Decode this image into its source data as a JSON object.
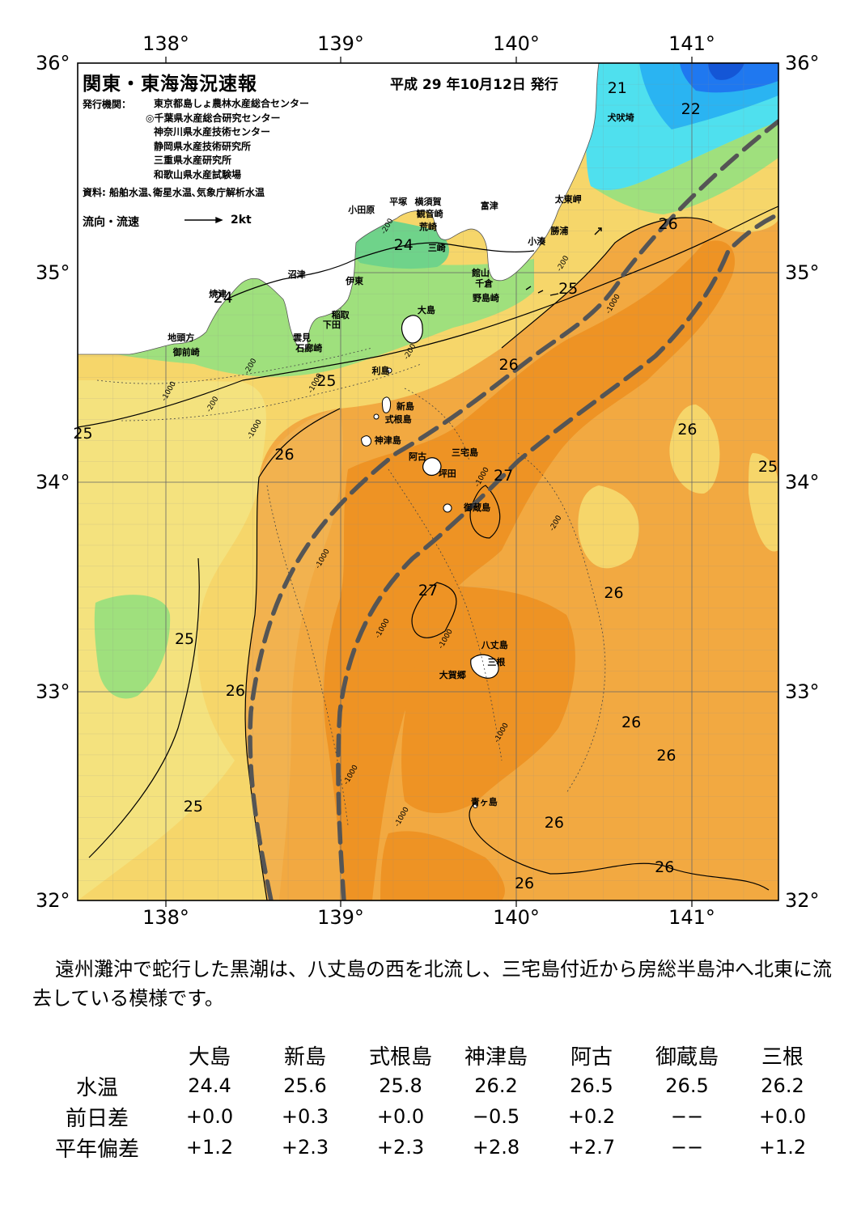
{
  "map": {
    "title": "関東・東海海況速報",
    "publish_date": "平成 29 年10月12日 発行",
    "agency_label": "発行機関：",
    "agencies": [
      "東京都島しょ農林水産総合センター",
      "◎千葉県水産総合研究センター",
      "神奈川県水産技術センター",
      "静岡県水産技術研究所",
      "三重県水産研究所",
      "和歌山県水産試験場"
    ],
    "source": "資料: 船舶水温､衛星水温､気象庁解析水温",
    "flow_label": "流向・流速",
    "flow_unit": "2kt",
    "lon_labels": [
      "138°",
      "139°",
      "140°",
      "141°"
    ],
    "lat_labels": [
      "36°",
      "35°",
      "34°",
      "33°",
      "32°"
    ],
    "place_names": [
      {
        "name": "小田原",
        "lon": 139.12,
        "lat": 35.3
      },
      {
        "name": "平塚",
        "lon": 139.33,
        "lat": 35.34
      },
      {
        "name": "横須賀",
        "lon": 139.5,
        "lat": 35.34
      },
      {
        "name": "観音崎",
        "lon": 139.51,
        "lat": 35.28
      },
      {
        "name": "荒崎",
        "lon": 139.5,
        "lat": 35.22
      },
      {
        "name": "三崎",
        "lon": 139.55,
        "lat": 35.12
      },
      {
        "name": "富津",
        "lon": 139.85,
        "lat": 35.32
      },
      {
        "name": "館山",
        "lon": 139.8,
        "lat": 35.0
      },
      {
        "name": "千倉",
        "lon": 139.82,
        "lat": 34.95
      },
      {
        "name": "野島崎",
        "lon": 139.83,
        "lat": 34.88
      },
      {
        "name": "小湊",
        "lon": 140.12,
        "lat": 35.15
      },
      {
        "name": "勝浦",
        "lon": 140.25,
        "lat": 35.2
      },
      {
        "name": "太東岬",
        "lon": 140.3,
        "lat": 35.35
      },
      {
        "name": "犬吠埼",
        "lon": 140.6,
        "lat": 35.74
      },
      {
        "name": "沼津",
        "lon": 138.75,
        "lat": 34.99
      },
      {
        "name": "伊東",
        "lon": 139.08,
        "lat": 34.96
      },
      {
        "name": "焼津",
        "lon": 138.3,
        "lat": 34.9
      },
      {
        "name": "稲取",
        "lon": 139.0,
        "lat": 34.8
      },
      {
        "name": "下田",
        "lon": 138.95,
        "lat": 34.75
      },
      {
        "name": "雲見",
        "lon": 138.78,
        "lat": 34.69
      },
      {
        "name": "石廊崎",
        "lon": 138.82,
        "lat": 34.64
      },
      {
        "name": "地頭方",
        "lon": 138.09,
        "lat": 34.69
      },
      {
        "name": "御前崎",
        "lon": 138.12,
        "lat": 34.62
      },
      {
        "name": "大島",
        "lon": 139.49,
        "lat": 34.82
      },
      {
        "name": "利島",
        "lon": 139.23,
        "lat": 34.53
      },
      {
        "name": "新島",
        "lon": 139.37,
        "lat": 34.36
      },
      {
        "name": "式根島",
        "lon": 139.33,
        "lat": 34.3
      },
      {
        "name": "神津島",
        "lon": 139.27,
        "lat": 34.2
      },
      {
        "name": "三宅島",
        "lon": 139.71,
        "lat": 34.14
      },
      {
        "name": "阿古",
        "lon": 139.44,
        "lat": 34.12
      },
      {
        "name": "坪田",
        "lon": 139.61,
        "lat": 34.04
      },
      {
        "name": "御蔵島",
        "lon": 139.78,
        "lat": 33.88
      },
      {
        "name": "八丈島",
        "lon": 139.88,
        "lat": 33.22
      },
      {
        "name": "三根",
        "lon": 139.89,
        "lat": 33.14
      },
      {
        "name": "大賀郷",
        "lon": 139.64,
        "lat": 33.08
      },
      {
        "name": "青ヶ島",
        "lon": 139.82,
        "lat": 32.47
      }
    ],
    "isotherm_labels": [
      {
        "text": "21",
        "lon": 140.58,
        "lat": 35.88
      },
      {
        "text": "22",
        "lon": 141.0,
        "lat": 35.78
      },
      {
        "text": "24",
        "lon": 139.36,
        "lat": 35.13
      },
      {
        "text": "24",
        "lon": 138.33,
        "lat": 34.88
      },
      {
        "text": "25",
        "lon": 140.3,
        "lat": 34.92
      },
      {
        "text": "25",
        "lon": 138.92,
        "lat": 34.48
      },
      {
        "text": "25",
        "lon": 137.53,
        "lat": 34.23
      },
      {
        "text": "25",
        "lon": 141.44,
        "lat": 34.07
      },
      {
        "text": "25",
        "lon": 138.11,
        "lat": 33.25
      },
      {
        "text": "25",
        "lon": 138.16,
        "lat": 32.45
      },
      {
        "text": "26",
        "lon": 140.87,
        "lat": 35.23
      },
      {
        "text": "26",
        "lon": 139.96,
        "lat": 34.56
      },
      {
        "text": "26",
        "lon": 140.98,
        "lat": 34.25
      },
      {
        "text": "26",
        "lon": 138.68,
        "lat": 34.13
      },
      {
        "text": "26",
        "lon": 140.56,
        "lat": 33.47
      },
      {
        "text": "26",
        "lon": 138.4,
        "lat": 33.0
      },
      {
        "text": "26",
        "lon": 140.66,
        "lat": 32.85
      },
      {
        "text": "26",
        "lon": 140.86,
        "lat": 32.69
      },
      {
        "text": "26",
        "lon": 140.22,
        "lat": 32.37
      },
      {
        "text": "26",
        "lon": 140.85,
        "lat": 32.16
      },
      {
        "text": "26",
        "lon": 140.05,
        "lat": 32.08
      },
      {
        "text": "27",
        "lon": 139.93,
        "lat": 34.03
      },
      {
        "text": "27",
        "lon": 139.5,
        "lat": 33.48
      }
    ],
    "depth_labels": [
      "-200",
      "-1000"
    ]
  },
  "summary": "遠州灘沖で蛇行した黒潮は、八丈島の西を北流し、三宅島付近から房総半島沖へ北東に流去している模様です。",
  "stats": {
    "stations": [
      "大島",
      "新島",
      "式根島",
      "神津島",
      "阿古",
      "御蔵島",
      "三根"
    ],
    "rows": [
      {
        "label": "水温",
        "values": [
          "24.4",
          "25.6",
          "25.8",
          "26.2",
          "26.5",
          "26.5",
          "26.2"
        ]
      },
      {
        "label": "前日差",
        "values": [
          "+0.0",
          "+0.3",
          "+0.0",
          "−0.5",
          "+0.2",
          "−−",
          "+0.0"
        ]
      },
      {
        "label": "平年偏差",
        "values": [
          "+1.2",
          "+2.3",
          "+2.3",
          "+2.8",
          "+2.7",
          "−−",
          "+1.2"
        ]
      }
    ]
  }
}
